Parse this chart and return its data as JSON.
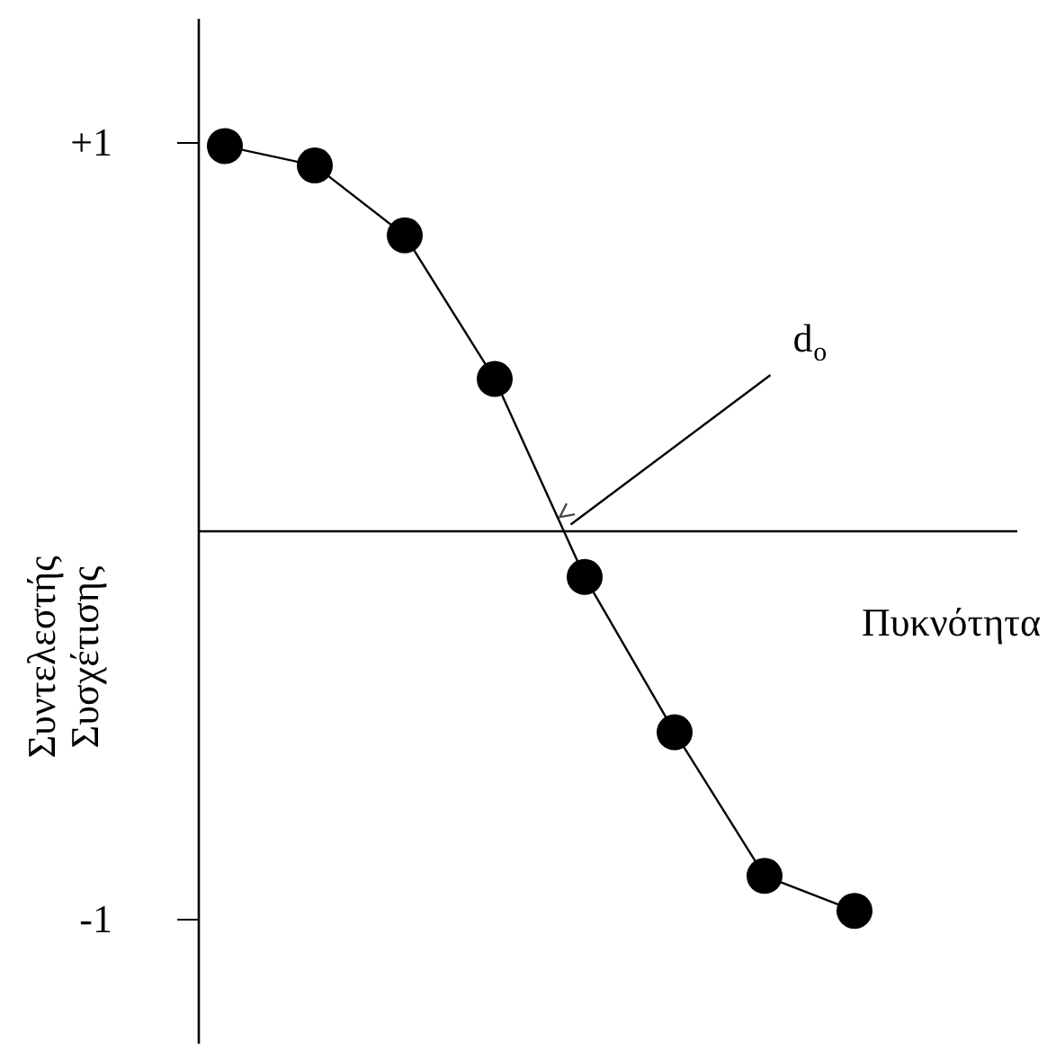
{
  "chart_data": {
    "type": "line",
    "xlabel": "Πυκνότητα",
    "ylabel": "Συντελεστής Συσχέτισης",
    "categories": [
      null,
      null,
      null,
      null,
      null,
      null,
      null,
      null
    ],
    "series": [
      {
        "color": "#000000",
        "values": [
          0.99,
          0.94,
          0.76,
          0.39,
          -0.12,
          -0.52,
          -0.89,
          -0.98
        ]
      }
    ],
    "ylim": [
      -1.32,
      1.32
    ],
    "yticks": [
      {
        "value": 1,
        "label": "+1"
      },
      {
        "value": -1,
        "label": "-1"
      }
    ],
    "marker": "circle",
    "tick_labels": "y",
    "annotations": [
      "d$_{o}$"
    ]
  }
}
